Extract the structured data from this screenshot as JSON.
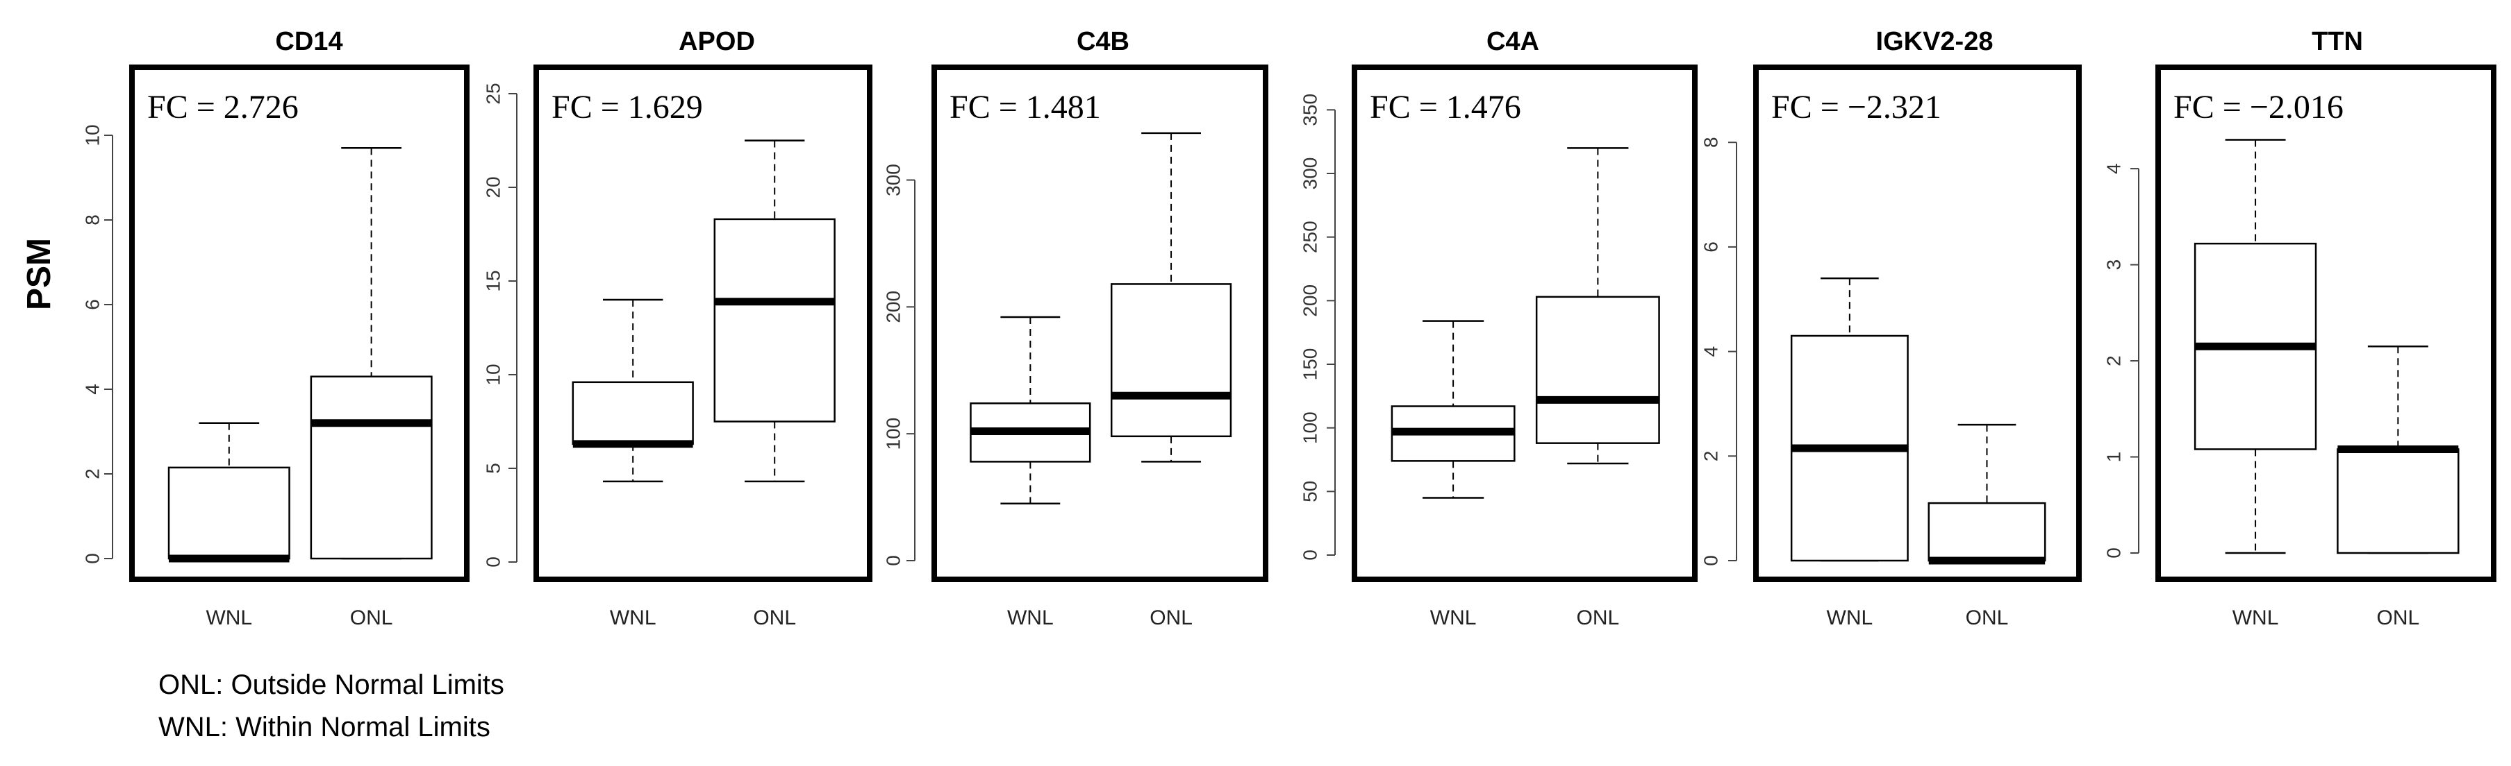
{
  "figure": {
    "ylabel": "PSM",
    "legend": [
      "ONL: Outside Normal Limits",
      "WNL: Within Normal Limits"
    ]
  },
  "chart_data": [
    {
      "type": "box",
      "title": "CD14",
      "annotation": "FC = 2.726",
      "ylim": [
        0,
        10
      ],
      "yticks": [
        0,
        2,
        4,
        6,
        8,
        10
      ],
      "categories": [
        "WNL",
        "ONL"
      ],
      "boxes": [
        {
          "category": "WNL",
          "min": 0,
          "q1": 0,
          "median": 0,
          "q3": 2.15,
          "max": 3.2
        },
        {
          "category": "ONL",
          "min": 0,
          "q1": 0,
          "median": 3.2,
          "q3": 4.3,
          "max": 9.7
        }
      ]
    },
    {
      "type": "box",
      "title": "APOD",
      "annotation": "FC = 1.629",
      "ylim": [
        0,
        25
      ],
      "yticks": [
        0,
        5,
        10,
        15,
        20,
        25
      ],
      "categories": [
        "WNL",
        "ONL"
      ],
      "boxes": [
        {
          "category": "WNL",
          "min": 4.3,
          "q1": 6.3,
          "median": 6.3,
          "q3": 9.6,
          "max": 14
        },
        {
          "category": "ONL",
          "min": 4.3,
          "q1": 7.5,
          "median": 13.9,
          "q3": 18.3,
          "max": 22.5
        }
      ]
    },
    {
      "type": "box",
      "title": "C4B",
      "annotation": "FC = 1.481",
      "ylim": [
        0,
        300
      ],
      "yticks": [
        0,
        100,
        200,
        300
      ],
      "categories": [
        "WNL",
        "ONL"
      ],
      "boxes": [
        {
          "category": "WNL",
          "min": 45,
          "q1": 78,
          "median": 102,
          "q3": 124,
          "max": 192
        },
        {
          "category": "ONL",
          "min": 78,
          "q1": 98,
          "median": 130,
          "q3": 218,
          "max": 337
        }
      ]
    },
    {
      "type": "box",
      "title": "C4A",
      "annotation": "FC = 1.476",
      "ylim": [
        0,
        350
      ],
      "yticks": [
        0,
        50,
        100,
        150,
        200,
        250,
        300,
        350
      ],
      "categories": [
        "WNL",
        "ONL"
      ],
      "boxes": [
        {
          "category": "WNL",
          "min": 45,
          "q1": 74,
          "median": 97,
          "q3": 117,
          "max": 184
        },
        {
          "category": "ONL",
          "min": 72,
          "q1": 88,
          "median": 122,
          "q3": 203,
          "max": 320
        }
      ]
    },
    {
      "type": "box",
      "title": "IGKV2-28",
      "annotation": "FC = −2.321",
      "ylim": [
        0,
        8
      ],
      "yticks": [
        0,
        2,
        4,
        6,
        8
      ],
      "categories": [
        "WNL",
        "ONL"
      ],
      "boxes": [
        {
          "category": "WNL",
          "min": 0,
          "q1": 0,
          "median": 2.15,
          "q3": 4.3,
          "max": 5.4
        },
        {
          "category": "ONL",
          "min": 0,
          "q1": 0,
          "median": 0,
          "q3": 1.1,
          "max": 2.6
        }
      ]
    },
    {
      "type": "box",
      "title": "TTN",
      "annotation": "FC = −2.016",
      "ylim": [
        0,
        4
      ],
      "yticks": [
        0,
        1,
        2,
        3,
        4
      ],
      "categories": [
        "WNL",
        "ONL"
      ],
      "boxes": [
        {
          "category": "WNL",
          "min": 0,
          "q1": 1.08,
          "median": 2.15,
          "q3": 3.22,
          "max": 4.3
        },
        {
          "category": "ONL",
          "min": 0,
          "q1": 0,
          "median": 1.08,
          "q3": 1.08,
          "max": 2.15
        }
      ]
    }
  ]
}
